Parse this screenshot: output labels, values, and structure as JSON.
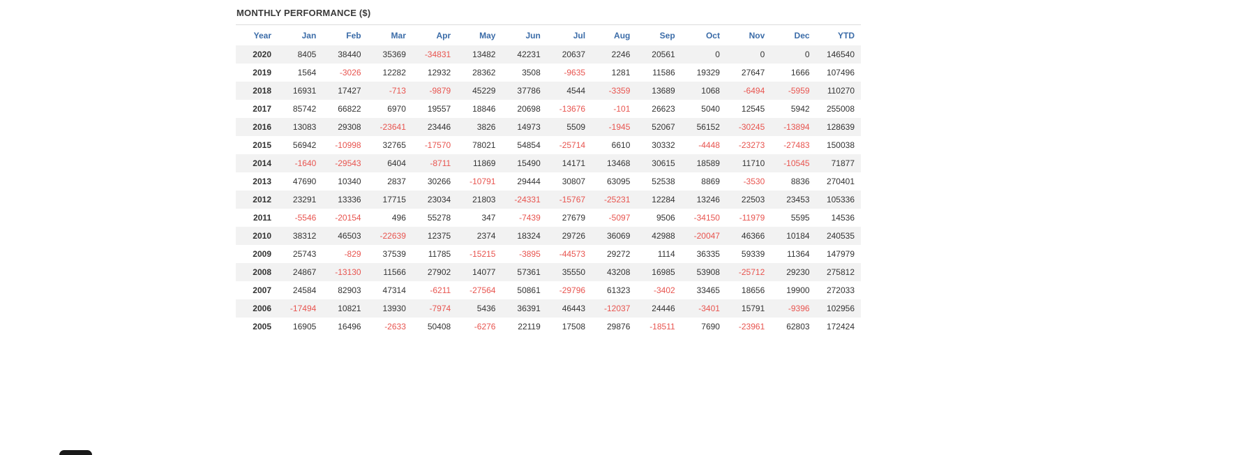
{
  "page": {
    "title": "MONTHLY PERFORMANCE ($)"
  },
  "chart_data": {
    "type": "table",
    "title": "MONTHLY PERFORMANCE ($)",
    "columns": [
      "Year",
      "Jan",
      "Feb",
      "Mar",
      "Apr",
      "May",
      "Jun",
      "Jul",
      "Aug",
      "Sep",
      "Oct",
      "Nov",
      "Dec",
      "YTD"
    ],
    "rows": [
      {
        "year": "2020",
        "values": [
          8405,
          38440,
          35369,
          -34831,
          13482,
          42231,
          20637,
          2246,
          20561,
          0,
          0,
          0,
          146540
        ]
      },
      {
        "year": "2019",
        "values": [
          1564,
          -3026,
          12282,
          12932,
          28362,
          3508,
          -9635,
          1281,
          11586,
          19329,
          27647,
          1666,
          107496
        ]
      },
      {
        "year": "2018",
        "values": [
          16931,
          17427,
          -713,
          -9879,
          45229,
          37786,
          4544,
          -3359,
          13689,
          1068,
          -6494,
          -5959,
          110270
        ]
      },
      {
        "year": "2017",
        "values": [
          85742,
          66822,
          6970,
          19557,
          18846,
          20698,
          -13676,
          -101,
          26623,
          5040,
          12545,
          5942,
          255008
        ]
      },
      {
        "year": "2016",
        "values": [
          13083,
          29308,
          -23641,
          23446,
          3826,
          14973,
          5509,
          -1945,
          52067,
          56152,
          -30245,
          -13894,
          128639
        ]
      },
      {
        "year": "2015",
        "values": [
          56942,
          -10998,
          32765,
          -17570,
          78021,
          54854,
          -25714,
          6610,
          30332,
          -4448,
          -23273,
          -27483,
          150038
        ]
      },
      {
        "year": "2014",
        "values": [
          -1640,
          -29543,
          6404,
          -8711,
          11869,
          15490,
          14171,
          13468,
          30615,
          18589,
          11710,
          -10545,
          71877
        ]
      },
      {
        "year": "2013",
        "values": [
          47690,
          10340,
          2837,
          30266,
          -10791,
          29444,
          30807,
          63095,
          52538,
          8869,
          -3530,
          8836,
          270401
        ]
      },
      {
        "year": "2012",
        "values": [
          23291,
          13336,
          17715,
          23034,
          21803,
          -24331,
          -15767,
          -25231,
          12284,
          13246,
          22503,
          23453,
          105336
        ]
      },
      {
        "year": "2011",
        "values": [
          -5546,
          -20154,
          496,
          55278,
          347,
          -7439,
          27679,
          -5097,
          9506,
          -34150,
          -11979,
          5595,
          14536
        ]
      },
      {
        "year": "2010",
        "values": [
          38312,
          46503,
          -22639,
          12375,
          2374,
          18324,
          29726,
          36069,
          42988,
          -20047,
          46366,
          10184,
          240535
        ]
      },
      {
        "year": "2009",
        "values": [
          25743,
          -829,
          37539,
          11785,
          -15215,
          -3895,
          -44573,
          29272,
          1114,
          36335,
          59339,
          11364,
          147979
        ]
      },
      {
        "year": "2008",
        "values": [
          24867,
          -13130,
          11566,
          27902,
          14077,
          57361,
          35550,
          43208,
          16985,
          53908,
          -25712,
          29230,
          275812
        ]
      },
      {
        "year": "2007",
        "values": [
          24584,
          82903,
          47314,
          -6211,
          -27564,
          50861,
          -29796,
          61323,
          -3402,
          33465,
          18656,
          19900,
          272033
        ]
      },
      {
        "year": "2006",
        "values": [
          -17494,
          10821,
          13930,
          -7974,
          5436,
          36391,
          46443,
          -12037,
          24446,
          -3401,
          15791,
          -9396,
          102956
        ]
      },
      {
        "year": "2005",
        "values": [
          16905,
          16496,
          -2633,
          50408,
          -6276,
          22119,
          17508,
          29876,
          -18511,
          7690,
          -23961,
          62803,
          172424
        ]
      }
    ],
    "layout": {
      "zebra_striping": true,
      "negative_values_in_red": true,
      "alignment": "right"
    },
    "colors": {
      "header_text": "#3b6ca8",
      "negative": "#e8544f",
      "zebra": "#f2f2f2",
      "text": "#333333",
      "title": "#3a3a3a"
    }
  }
}
